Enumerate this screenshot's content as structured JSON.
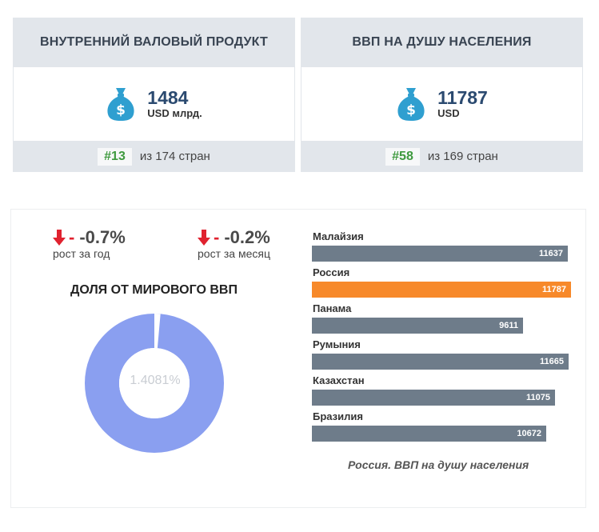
{
  "gdp_card": {
    "title": "ВНУТРЕННИЙ ВАЛОВЫЙ ПРОДУКТ",
    "icon": "money-bag-icon",
    "value": "1484",
    "unit": "USD млрд.",
    "rank": "#13",
    "rank_text": "из 174 стран"
  },
  "gdp_pc_card": {
    "title": "ВВП НА ДУШУ НАСЕЛЕНИЯ",
    "icon": "money-bag-icon",
    "value": "11787",
    "unit": "USD",
    "rank": "#58",
    "rank_text": "из 169 стран"
  },
  "growth_year": {
    "dash": "-",
    "value": "-0.7%",
    "label": "рост за год",
    "icon": "arrow-down-icon"
  },
  "growth_month": {
    "dash": "-",
    "value": "-0.2%",
    "label": "рост за месяц",
    "icon": "arrow-down-icon"
  },
  "share": {
    "title": "ДОЛЯ ОТ МИРОВОГО ВВП",
    "label": "1.4081%",
    "value": 1.4081
  },
  "colors": {
    "accent_blue": "#8a9ff0",
    "bar_gray": "#6e7c8a",
    "bar_highlight": "#f7892a",
    "down_red": "#e0222f",
    "rank_green": "#3f9a3f",
    "icon_blue": "#2f9fd0"
  },
  "chart_data": [
    {
      "type": "pie",
      "title": "ДОЛЯ ОТ МИРОВОГО ВВП",
      "categories": [
        "Россия",
        ""
      ],
      "values": [
        1.4081,
        98.5919
      ]
    },
    {
      "type": "bar",
      "orientation": "horizontal",
      "categories": [
        "Малайзия",
        "Россия",
        "Панама",
        "Румыния",
        "Казахстан",
        "Бразилия"
      ],
      "values": [
        11637,
        11787,
        9611,
        11665,
        11075,
        10672
      ],
      "value_labels": [
        "11637",
        "11787",
        "9611",
        "11665",
        "11075",
        "10672"
      ],
      "highlight": "Россия",
      "caption": "Россия. ВВП на душу населения"
    }
  ]
}
